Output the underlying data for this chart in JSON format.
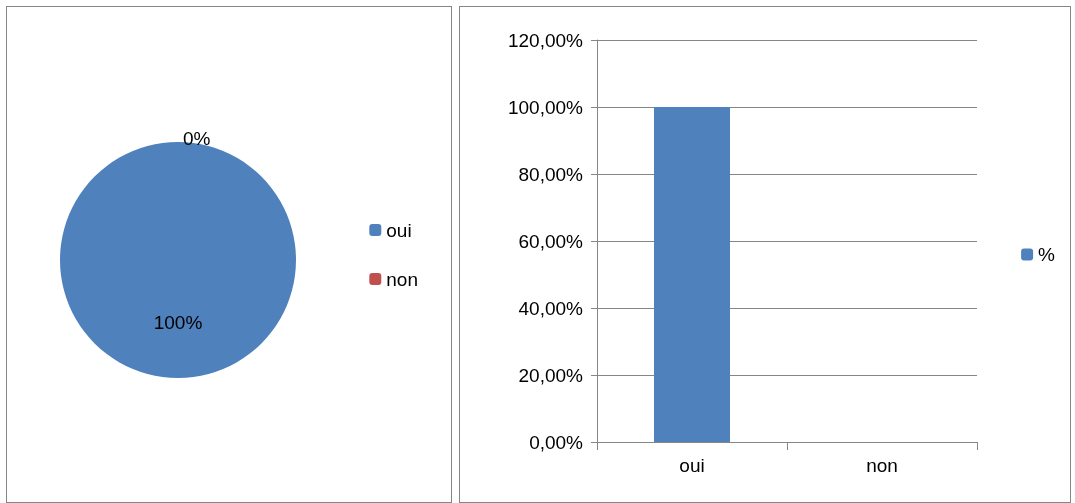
{
  "chart_data": [
    {
      "type": "pie",
      "categories": [
        "oui",
        "non"
      ],
      "values": [
        100,
        0
      ],
      "colors": [
        "#4f81bd",
        "#c0504d"
      ],
      "value_labels": [
        "100%",
        "0%"
      ],
      "legend": "right"
    },
    {
      "type": "bar",
      "categories": [
        "oui",
        "non"
      ],
      "series": [
        {
          "name": "%",
          "color": "#4f81bd",
          "values": [
            100,
            0
          ]
        }
      ],
      "ylim": [
        0,
        120
      ],
      "yticks": [
        {
          "value": 0,
          "label": "0,00%"
        },
        {
          "value": 20,
          "label": "20,00%"
        },
        {
          "value": 40,
          "label": "40,00%"
        },
        {
          "value": 60,
          "label": "60,00%"
        },
        {
          "value": 80,
          "label": "80,00%"
        },
        {
          "value": 100,
          "label": "100,00%"
        },
        {
          "value": 120,
          "label": "120,00%"
        }
      ],
      "grid": "y",
      "legend": "right"
    }
  ]
}
